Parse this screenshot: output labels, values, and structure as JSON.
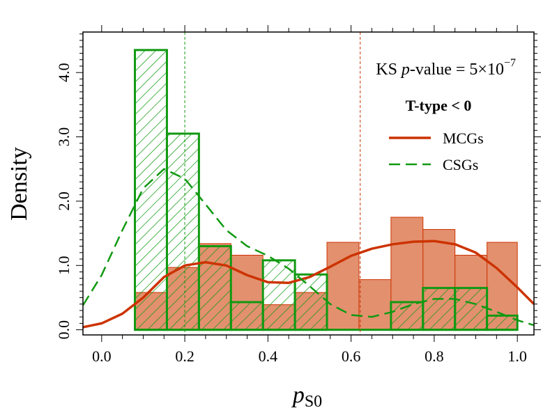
{
  "chart_data": {
    "type": "histogram",
    "xlabel": "p",
    "xlabel_subscript": "S0",
    "ylabel": "Density",
    "xlim": [
      -0.045,
      1.04
    ],
    "ylim": [
      -0.08,
      4.63
    ],
    "x_ticks": [
      {
        "value": 0.0,
        "label": "0.0"
      },
      {
        "value": 0.2,
        "label": "0.2"
      },
      {
        "value": 0.4,
        "label": "0.4"
      },
      {
        "value": 0.6,
        "label": "0.6"
      },
      {
        "value": 0.8,
        "label": "0.8"
      },
      {
        "value": 1.0,
        "label": "1.0"
      }
    ],
    "y_ticks": [
      {
        "value": 0.0,
        "label": "0.0"
      },
      {
        "value": 1.0,
        "label": "1.0"
      },
      {
        "value": 2.0,
        "label": "2.0"
      },
      {
        "value": 3.0,
        "label": "3.0"
      },
      {
        "value": 4.0,
        "label": "4.0"
      }
    ],
    "bin_edges": [
      0.08,
      0.157,
      0.234,
      0.311,
      0.388,
      0.465,
      0.542,
      0.619,
      0.696,
      0.773,
      0.85,
      0.927,
      1.0
    ],
    "series": [
      {
        "name": "MCGs",
        "style": "solid",
        "color": "#cc3300",
        "fill": "#e3906f",
        "densities": [
          0.58,
          0.97,
          1.34,
          1.16,
          0.39,
          0.58,
          1.36,
          0.78,
          1.75,
          1.56,
          1.16,
          1.36
        ],
        "kde": [
          [
            -0.045,
            0.04
          ],
          [
            0.0,
            0.1
          ],
          [
            0.05,
            0.25
          ],
          [
            0.1,
            0.5
          ],
          [
            0.15,
            0.82
          ],
          [
            0.2,
            1.0
          ],
          [
            0.25,
            1.05
          ],
          [
            0.3,
            1.0
          ],
          [
            0.35,
            0.85
          ],
          [
            0.4,
            0.74
          ],
          [
            0.45,
            0.73
          ],
          [
            0.5,
            0.82
          ],
          [
            0.55,
            0.98
          ],
          [
            0.6,
            1.15
          ],
          [
            0.65,
            1.26
          ],
          [
            0.7,
            1.33
          ],
          [
            0.75,
            1.37
          ],
          [
            0.8,
            1.38
          ],
          [
            0.85,
            1.33
          ],
          [
            0.9,
            1.2
          ],
          [
            0.95,
            0.96
          ],
          [
            1.0,
            0.66
          ],
          [
            1.04,
            0.4
          ]
        ]
      },
      {
        "name": "CSGs",
        "style": "dashed",
        "color": "#119911",
        "hatch": true,
        "densities": [
          4.35,
          3.05,
          1.3,
          0.43,
          1.08,
          0.86,
          0.0,
          0.0,
          0.43,
          0.65,
          0.65,
          0.22
        ],
        "kde": [
          [
            -0.045,
            0.38
          ],
          [
            0.0,
            0.85
          ],
          [
            0.05,
            1.55
          ],
          [
            0.1,
            2.2
          ],
          [
            0.15,
            2.5
          ],
          [
            0.2,
            2.35
          ],
          [
            0.25,
            1.95
          ],
          [
            0.3,
            1.55
          ],
          [
            0.35,
            1.3
          ],
          [
            0.4,
            1.15
          ],
          [
            0.45,
            0.95
          ],
          [
            0.5,
            0.68
          ],
          [
            0.55,
            0.4
          ],
          [
            0.6,
            0.23
          ],
          [
            0.65,
            0.2
          ],
          [
            0.7,
            0.28
          ],
          [
            0.75,
            0.4
          ],
          [
            0.8,
            0.48
          ],
          [
            0.85,
            0.48
          ],
          [
            0.9,
            0.4
          ],
          [
            0.95,
            0.28
          ],
          [
            1.0,
            0.15
          ],
          [
            1.04,
            0.07
          ]
        ]
      }
    ],
    "vlines": [
      {
        "series": "CSGs",
        "x": 0.2,
        "color": "#119911"
      },
      {
        "series": "MCGs",
        "x": 0.622,
        "color": "#cc3300"
      }
    ],
    "annotation": {
      "prefix": "KS ",
      "italic": "p",
      "suffix": "-value = 5×10",
      "exponent": "−7"
    },
    "legend": {
      "title": "T-type < 0",
      "position": "top-right",
      "entries": [
        {
          "label": "MCGs",
          "color": "#cc3300",
          "style": "solid"
        },
        {
          "label": "CSGs",
          "color": "#119911",
          "style": "dashed"
        }
      ]
    }
  }
}
